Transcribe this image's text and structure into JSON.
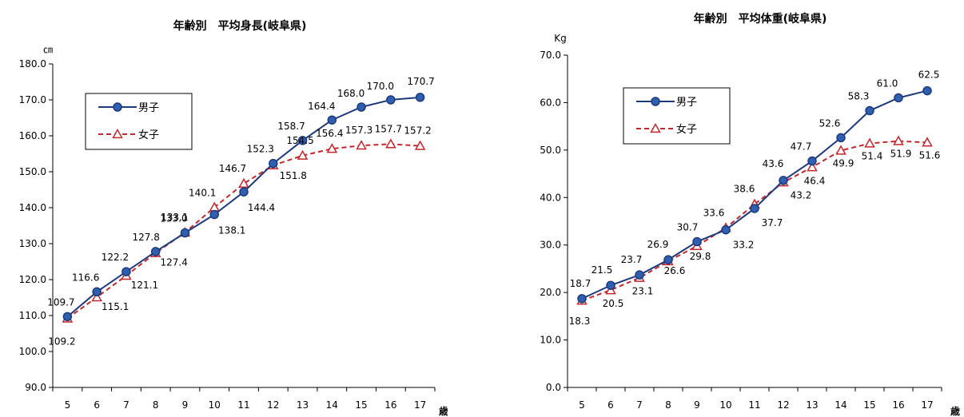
{
  "chart_data": [
    {
      "type": "line",
      "title": "年齢別　平均身長(岐阜県)",
      "ylabel": "㎝",
      "xlabel": "歳",
      "categories": [
        "5",
        "6",
        "7",
        "8",
        "9",
        "10",
        "11",
        "12",
        "13",
        "14",
        "15",
        "16",
        "17"
      ],
      "ylim": [
        90,
        180
      ],
      "ytick_step": 10,
      "ytick_labels": [
        "90.0",
        "100.0",
        "110.0",
        "120.0",
        "130.0",
        "140.0",
        "150.0",
        "160.0",
        "170.0",
        "180.0"
      ],
      "grid": false,
      "legend_position": "upper-left",
      "series": [
        {
          "name": "男子",
          "color": "#1f3a7a",
          "marker_fill": "#2e5fb0",
          "marker": "circle",
          "line_style": "solid",
          "values": [
            109.7,
            116.6,
            122.2,
            127.8,
            133.0,
            138.1,
            144.4,
            152.3,
            158.7,
            164.4,
            168.0,
            170.0,
            170.7
          ],
          "labels": [
            "109.7",
            "116.6",
            "122.2",
            "127.8",
            "133.0",
            "138.1",
            "144.4",
            "152.3",
            "158.7",
            "164.4",
            "168.0",
            "170.0",
            "170.7"
          ]
        },
        {
          "name": "女子",
          "color": "#c0282d",
          "marker": "triangle",
          "line_style": "dashed",
          "values": [
            109.2,
            115.1,
            121.1,
            127.4,
            133.1,
            140.1,
            146.7,
            151.8,
            154.5,
            156.4,
            157.3,
            157.7,
            157.2
          ],
          "labels": [
            "109.2",
            "115.1",
            "121.1",
            "127.4",
            "133.1",
            "140.1",
            "146.7",
            "151.8",
            "154.5",
            "156.4",
            "157.3",
            "157.7",
            "157.2"
          ]
        }
      ]
    },
    {
      "type": "line",
      "title": "年齢別　平均体重(岐阜県)",
      "ylabel": "Kg",
      "xlabel": "歳",
      "categories": [
        "5",
        "6",
        "7",
        "8",
        "9",
        "10",
        "11",
        "12",
        "13",
        "14",
        "15",
        "16",
        "17"
      ],
      "ylim": [
        0,
        70
      ],
      "ytick_step": 10,
      "ytick_labels": [
        "0.0",
        "10.0",
        "20.0",
        "30.0",
        "40.0",
        "50.0",
        "60.0",
        "70.0"
      ],
      "grid": false,
      "legend_position": "upper-left",
      "series": [
        {
          "name": "男子",
          "color": "#1f3a7a",
          "marker_fill": "#2e5fb0",
          "marker": "circle",
          "line_style": "solid",
          "values": [
            18.7,
            21.5,
            23.7,
            26.9,
            30.7,
            33.2,
            37.7,
            43.6,
            47.7,
            52.6,
            58.3,
            61.0,
            62.5
          ],
          "labels": [
            "18.7",
            "21.5",
            "23.7",
            "26.9",
            "30.7",
            "33.2",
            "37.7",
            "43.6",
            "47.7",
            "52.6",
            "58.3",
            "61.0",
            "62.5"
          ]
        },
        {
          "name": "女子",
          "color": "#c0282d",
          "marker": "triangle",
          "line_style": "dashed",
          "values": [
            18.3,
            20.5,
            23.1,
            26.6,
            29.8,
            33.6,
            38.6,
            43.2,
            46.4,
            49.9,
            51.4,
            51.9,
            51.6
          ],
          "labels": [
            "18.3",
            "20.5",
            "23.1",
            "26.6",
            "29.8",
            "33.6",
            "38.6",
            "43.2",
            "46.4",
            "49.9",
            "51.4",
            "51.9",
            "51.6"
          ]
        }
      ]
    }
  ]
}
